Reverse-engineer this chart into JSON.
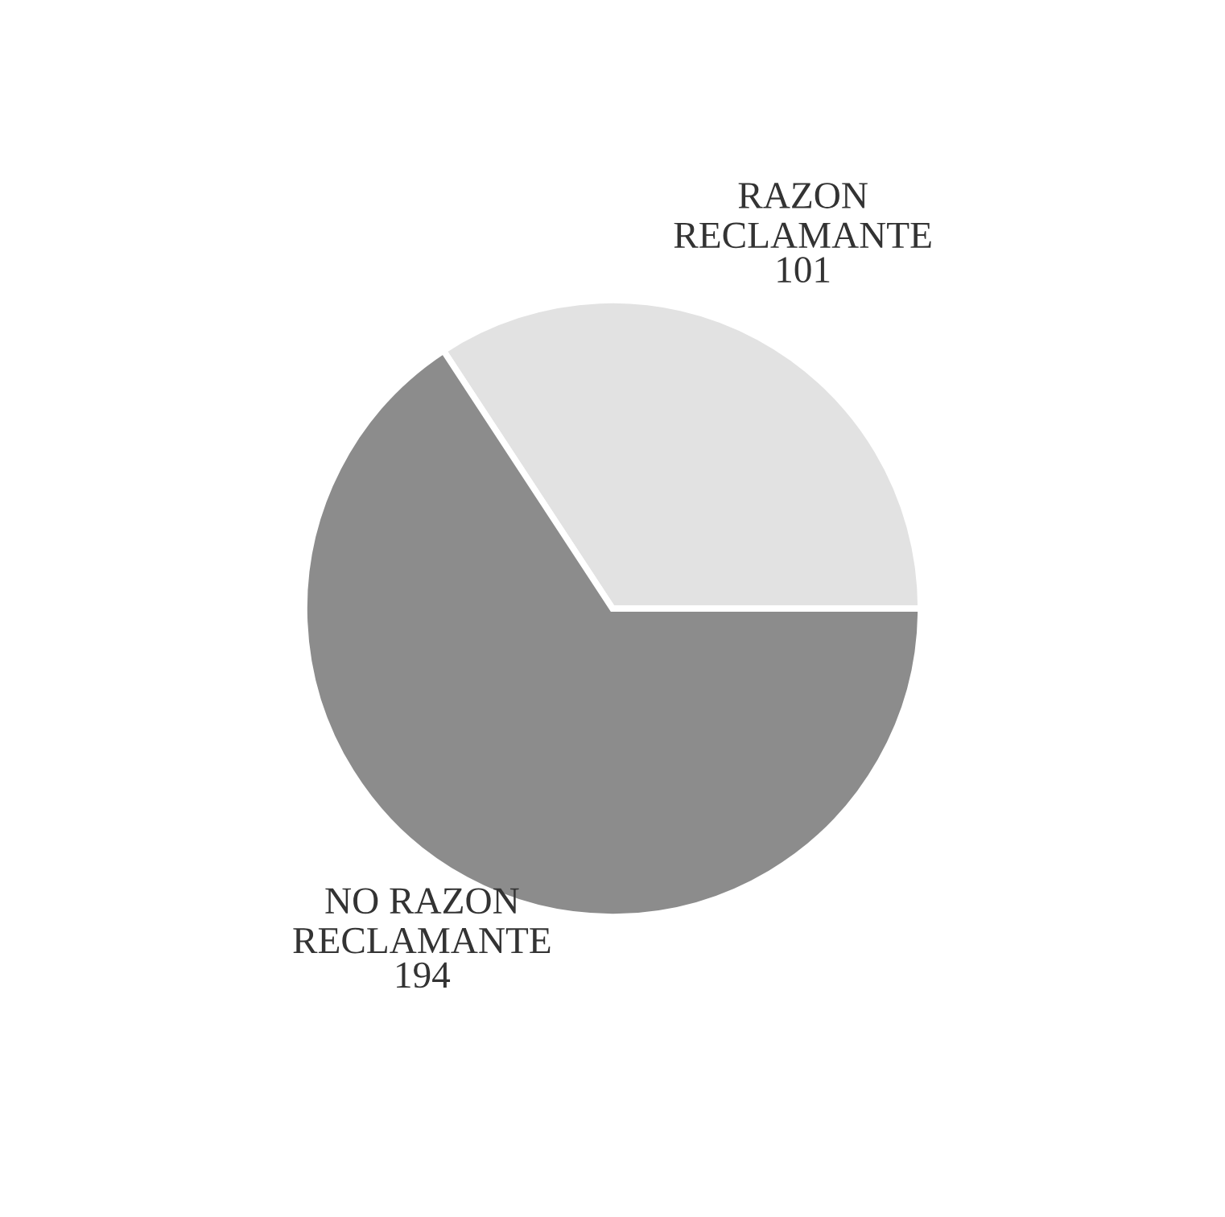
{
  "chart_data": {
    "type": "pie",
    "categories": [
      "RAZON RECLAMANTE",
      "NO RAZON RECLAMANTE"
    ],
    "values": [
      101,
      194
    ],
    "colors": [
      "#e2e2e2",
      "#8c8c8c"
    ],
    "data_labels": true,
    "legend": false
  }
}
